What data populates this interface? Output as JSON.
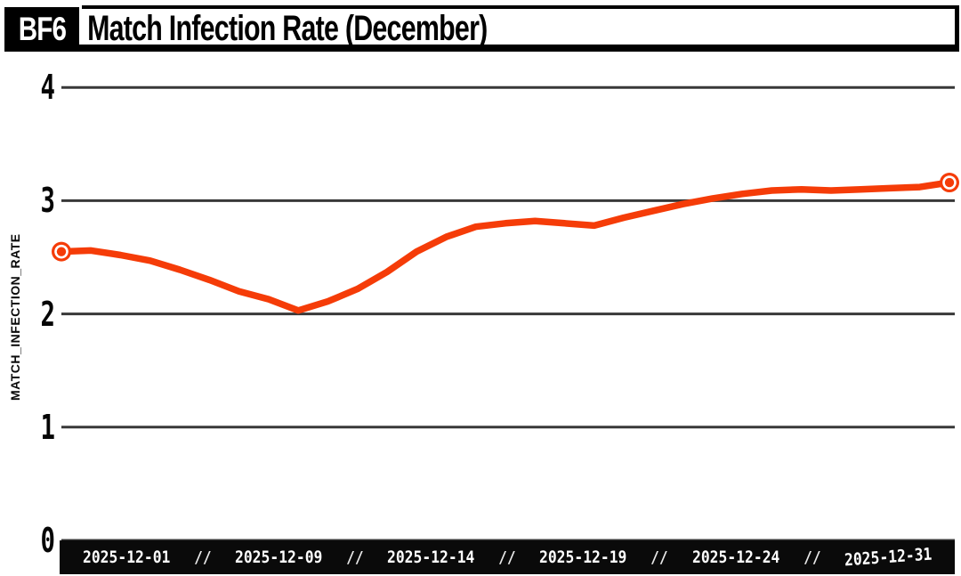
{
  "header": {
    "badge": "BF6"
  },
  "chart_data": {
    "type": "line",
    "title": "Match Infection Rate (December)",
    "xlabel": "",
    "ylabel": "MATCH_INFECTION_RATE",
    "ylim": [
      0,
      4
    ],
    "y_ticks": [
      0,
      1,
      2,
      3,
      4
    ],
    "grid": "horizontal",
    "x_tick_labels": [
      "2025-12-01",
      "2025-12-09",
      "2025-12-14",
      "2025-12-19",
      "2025-12-24",
      "2025-12-31"
    ],
    "x_tick_separator": "//",
    "series": [
      {
        "name": "match_infection_rate",
        "x_days": [
          1,
          2,
          3,
          4,
          5,
          6,
          7,
          8,
          9,
          10,
          11,
          12,
          13,
          14,
          15,
          16,
          17,
          18,
          19,
          20,
          21,
          22,
          23,
          24,
          25,
          26,
          27,
          28,
          29,
          30,
          31
        ],
        "values": [
          2.55,
          2.56,
          2.52,
          2.47,
          2.39,
          2.3,
          2.2,
          2.13,
          2.03,
          2.11,
          2.22,
          2.37,
          2.55,
          2.68,
          2.77,
          2.8,
          2.82,
          2.8,
          2.78,
          2.85,
          2.91,
          2.97,
          3.02,
          3.06,
          3.09,
          3.1,
          3.09,
          3.1,
          3.11,
          3.12,
          3.16
        ]
      }
    ],
    "endpoint_markers": true,
    "colors": {
      "line": "#f53c08",
      "grid": "#383838",
      "axis_bar_background": "#0a0a0a",
      "axis_bar_text": "#ffffff",
      "text": "#050505",
      "background": "#ffffff"
    }
  }
}
